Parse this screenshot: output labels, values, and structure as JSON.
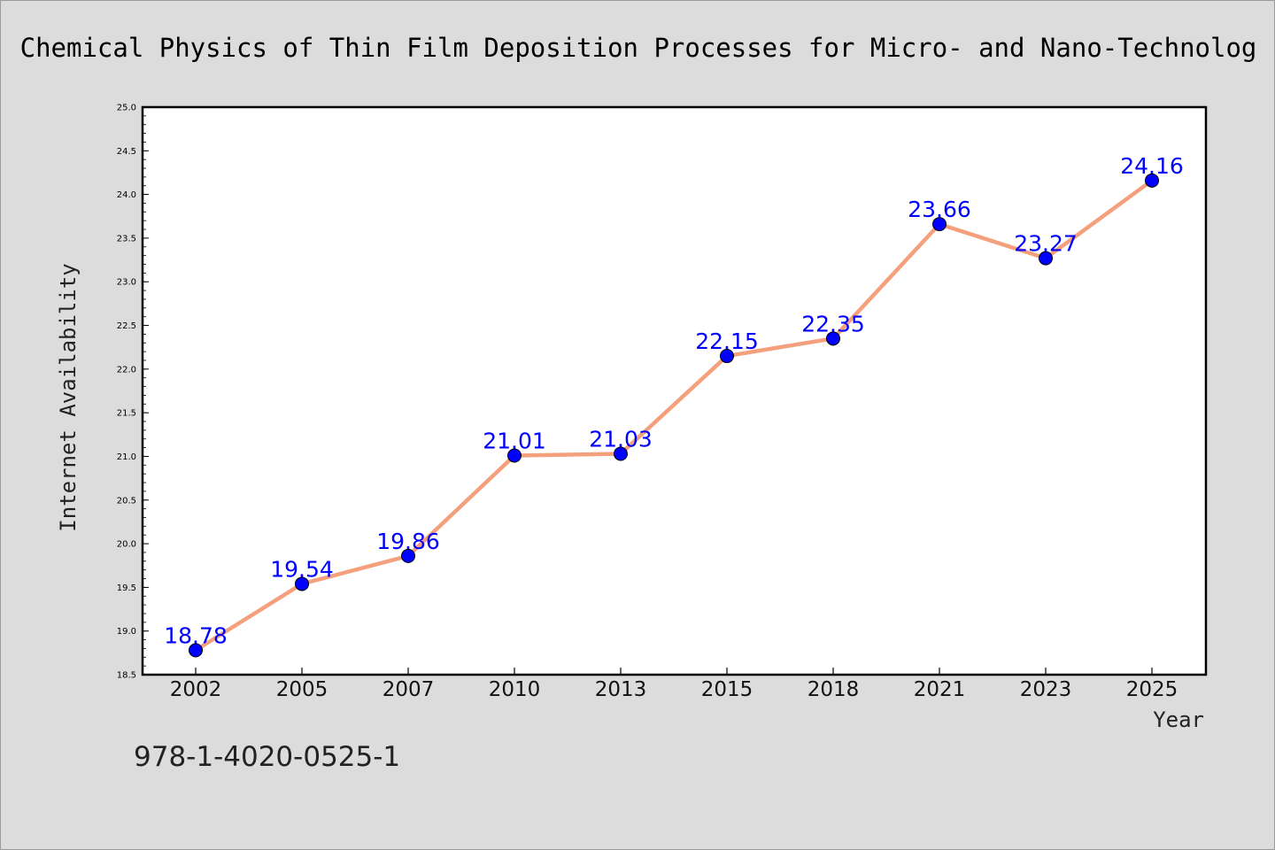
{
  "chart_data": {
    "type": "line",
    "title": "Chemical Physics of Thin Film Deposition Processes for Micro- and Nano-Technolog",
    "xlabel": "Year",
    "ylabel": "Internet Availability",
    "categories": [
      "2002",
      "2005",
      "2007",
      "2010",
      "2013",
      "2015",
      "2018",
      "2021",
      "2023",
      "2025"
    ],
    "values": [
      18.78,
      19.54,
      19.86,
      21.01,
      21.03,
      22.15,
      22.35,
      23.66,
      23.27,
      24.16
    ],
    "data_labels": [
      "18.78",
      "19.54",
      "19.86",
      "21.01",
      "21.03",
      "22.15",
      "22.35",
      "23.66",
      "23.27",
      "24.16"
    ],
    "ylim": [
      18.5,
      25.0
    ],
    "yticks": [
      "18.5",
      "19.0",
      "19.5",
      "20.0",
      "20.5",
      "21.0",
      "21.5",
      "22.0",
      "22.5",
      "23.0",
      "23.5",
      "24.0",
      "24.5",
      "25.0"
    ],
    "grid": false,
    "legend": "none",
    "colors": {
      "line": "#f4a07c",
      "marker": "#0000ff",
      "data_label": "#0000ff",
      "plot_background": "#ffffff",
      "figure_background": "#dcdcdc"
    }
  },
  "footnote": "978-1-4020-0525-1"
}
